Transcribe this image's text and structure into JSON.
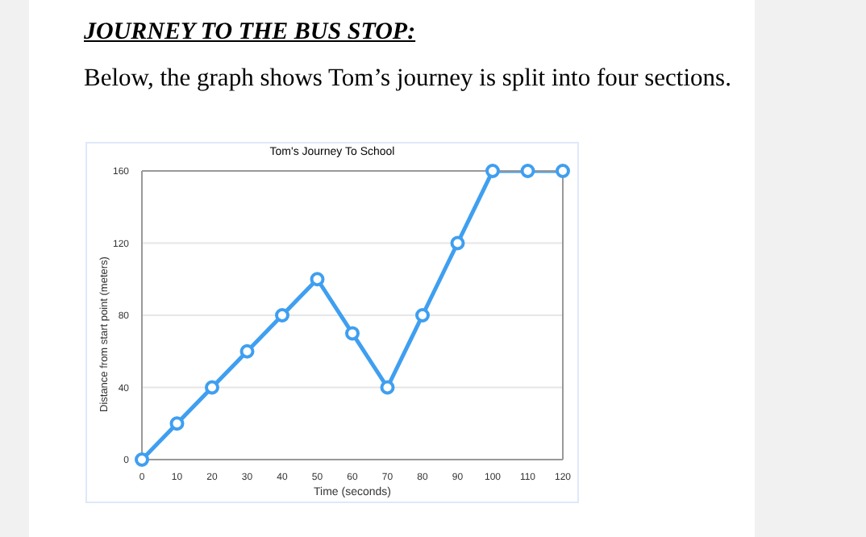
{
  "chart_data": {
    "type": "line",
    "title": "Tom's Journey To School",
    "xlabel": "Time (seconds)",
    "ylabel": "Distance from start point (meters)",
    "annotations": [
      "JOURNEY TO THE BUS STOP:",
      "Below, the graph shows Tom’s journey is split into four sections."
    ],
    "x": [
      0,
      10,
      20,
      30,
      40,
      50,
      60,
      70,
      80,
      90,
      100,
      110,
      120
    ],
    "series": [
      {
        "color": "#3f9ff0",
        "values": [
          0,
          20,
          40,
          60,
          80,
          100,
          70,
          40,
          80,
          120,
          160,
          160,
          160
        ]
      }
    ],
    "xlim": [
      0,
      120
    ],
    "xticks": [
      0,
      10,
      20,
      30,
      40,
      50,
      60,
      70,
      80,
      90,
      100,
      110,
      120
    ],
    "ylim": [
      0,
      160
    ],
    "yticks": [
      0,
      40,
      80,
      120,
      160
    ],
    "grid": "y",
    "legend": false,
    "marker": "circle",
    "line_style": "solid"
  }
}
